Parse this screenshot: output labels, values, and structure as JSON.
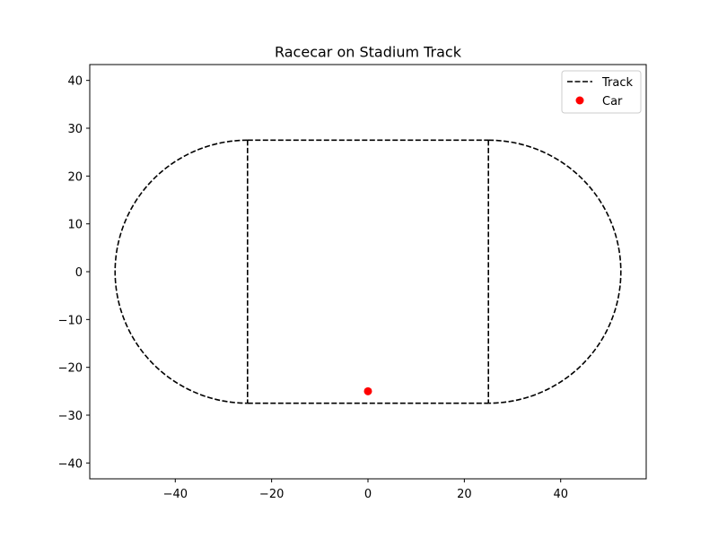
{
  "chart_data": {
    "type": "line",
    "title": "Racecar on Stadium Track",
    "xlabel": "",
    "ylabel": "",
    "xlim": [
      -57.75,
      57.75
    ],
    "ylim": [
      -43.3125,
      43.3125
    ],
    "xticks": [
      -40,
      -20,
      0,
      20,
      40
    ],
    "yticks": [
      -40,
      -30,
      -20,
      -10,
      0,
      10,
      20,
      30,
      40
    ],
    "xtick_labels": [
      "−40",
      "−20",
      "0",
      "20",
      "40"
    ],
    "ytick_labels": [
      "−40",
      "−30",
      "−20",
      "−10",
      "0",
      "10",
      "20",
      "30",
      "40"
    ],
    "grid": false,
    "legend_position": "upper right",
    "series": [
      {
        "name": "Track",
        "kind": "line",
        "style": "dashed",
        "color": "#000000",
        "shape": "stadium",
        "straight_half_length": 25,
        "turn_radius": 27.5,
        "center": [
          0,
          0
        ],
        "includes_radial_dividers": true
      },
      {
        "name": "Car",
        "kind": "scatter",
        "color": "#ff0000",
        "points": [
          [
            0,
            -25
          ]
        ]
      }
    ]
  }
}
